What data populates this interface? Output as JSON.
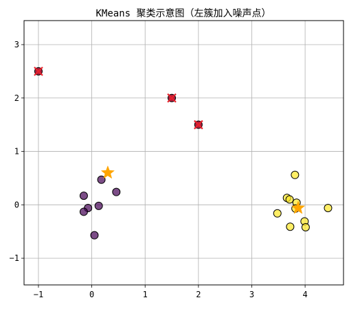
{
  "chart_data": {
    "type": "scatter",
    "title": "KMeans 聚类示意图（左簇加入噪声点）",
    "xlabel": "",
    "ylabel": "",
    "xlim": [
      -1.27,
      4.72
    ],
    "ylim": [
      -1.5,
      3.45
    ],
    "grid": true,
    "x_ticks": [
      -1,
      0,
      1,
      2,
      3,
      4
    ],
    "y_ticks": [
      -1,
      0,
      1,
      2,
      3
    ],
    "x_tick_labels": [
      "−1",
      "0",
      "1",
      "2",
      "3",
      "4"
    ],
    "y_tick_labels": [
      "−1",
      "0",
      "1",
      "2",
      "3"
    ],
    "colors": {
      "cluster_0": "#440154",
      "cluster_1": "#fde725",
      "noise_fill": "#b01f3f",
      "noise_cross": "#e8212b",
      "centroid": "#ffa500",
      "point_edge": "#000000",
      "grid": "#b0b0b0"
    },
    "series": [
      {
        "cluster": 0,
        "marker": "circle",
        "color": "#440154",
        "points": [
          [
            0.18,
            0.47
          ],
          [
            -0.15,
            0.17
          ],
          [
            0.46,
            0.24
          ],
          [
            0.13,
            -0.02
          ],
          [
            -0.07,
            -0.06
          ],
          [
            -0.15,
            -0.13
          ],
          [
            0.05,
            -0.57
          ]
        ]
      },
      {
        "cluster": 1,
        "marker": "circle",
        "color": "#fde725",
        "points": [
          [
            3.81,
            0.56
          ],
          [
            3.66,
            0.13
          ],
          [
            3.71,
            0.1
          ],
          [
            3.84,
            0.04
          ],
          [
            3.82,
            -0.07
          ],
          [
            4.43,
            -0.06
          ],
          [
            3.48,
            -0.16
          ],
          [
            3.99,
            -0.31
          ],
          [
            3.72,
            -0.41
          ],
          [
            4.01,
            -0.42
          ]
        ]
      },
      {
        "cluster": "noise",
        "marker": "circle-with-x",
        "color": "#b01f3f",
        "points": [
          [
            -1.0,
            2.5
          ],
          [
            1.5,
            2.0
          ],
          [
            2.0,
            1.5
          ]
        ]
      },
      {
        "cluster": "centroids",
        "marker": "star",
        "color": "#ffa500",
        "points": [
          [
            0.3,
            0.6
          ],
          [
            3.87,
            -0.06
          ]
        ]
      }
    ]
  }
}
